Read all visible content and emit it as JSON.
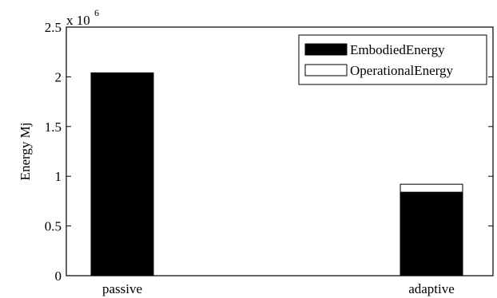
{
  "chart_data": {
    "type": "bar",
    "stacked": true,
    "categories": [
      "passive",
      "adaptive"
    ],
    "series": [
      {
        "name": "EmbodiedEnergy",
        "values": [
          2.04,
          0.84
        ],
        "color": "#000000"
      },
      {
        "name": "OperationalEnergy",
        "values": [
          0,
          0.08
        ],
        "color": "#ffffff"
      }
    ],
    "ylabel": "Energy Mj",
    "y_multiplier": {
      "base": "x 10",
      "exponent": "6"
    },
    "ylim": [
      0,
      2.5
    ],
    "yticks": [
      "0",
      "0.5",
      "1",
      "1.5",
      "2",
      "2.5"
    ],
    "grid": false,
    "legend_position": "top-right"
  }
}
